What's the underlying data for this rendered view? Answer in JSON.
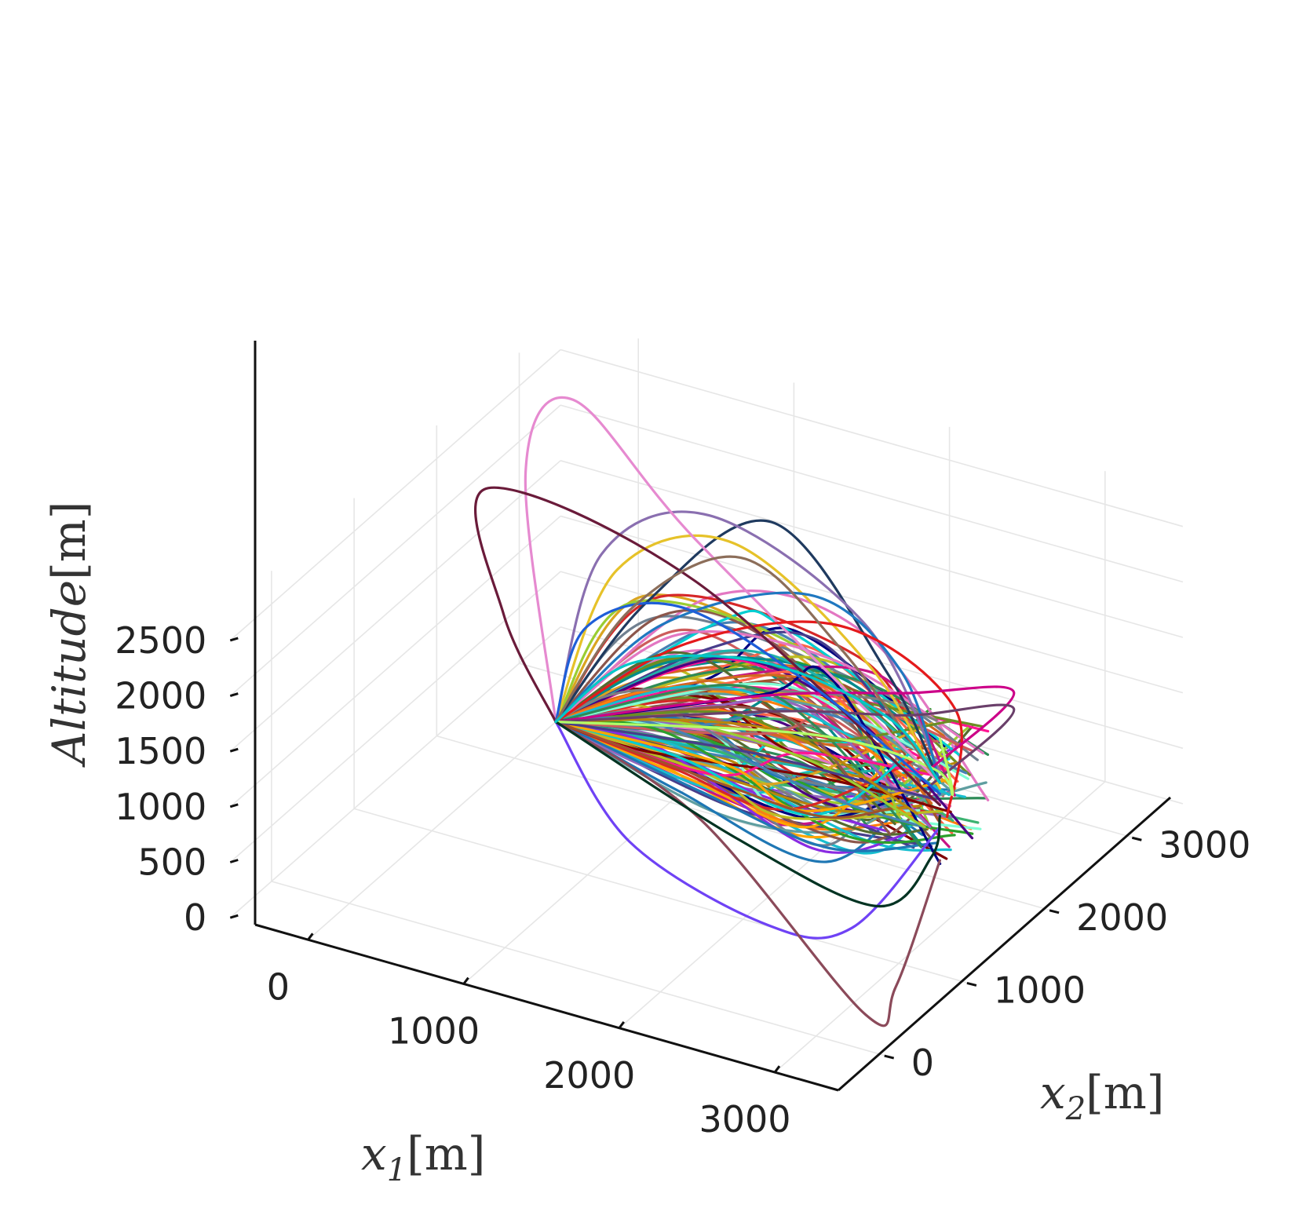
{
  "chart_data": {
    "type": "line",
    "projection": "3d",
    "title": "",
    "xlabel": "x_1[m]",
    "ylabel": "x_2[m]",
    "zlabel": "Altitude[m]",
    "axis_labels": {
      "x1": {
        "sym": "x",
        "sub": "1",
        "unit": "[m]"
      },
      "x2": {
        "sym": "x",
        "sub": "2",
        "unit": "[m]"
      },
      "z": {
        "text": "Altitude",
        "unit": "[m]"
      }
    },
    "xlim": [
      -500,
      3500
    ],
    "ylim": [
      -500,
      3500
    ],
    "zlim": [
      0,
      2800
    ],
    "x_ticks": [
      "0",
      "1000",
      "2000",
      "3000"
    ],
    "y_ticks": [
      "0",
      "1000",
      "2000",
      "3000"
    ],
    "z_ticks": [
      "0",
      "500",
      "1000",
      "1500",
      "2000",
      "2500"
    ],
    "grid": true,
    "start_point": [
      0,
      2500,
      0
    ],
    "end_region": {
      "x": 3000,
      "y": 1500,
      "z_range": [
        800,
        1700
      ]
    },
    "series_note": "approximately 150 trajectories, one color each",
    "highlighted_series": [
      {
        "color": "#1f3a5f",
        "points": [
          [
            0,
            2500,
            0
          ],
          [
            700,
            2300,
            1500
          ],
          [
            1600,
            2100,
            2700
          ],
          [
            2500,
            1800,
            1900
          ],
          [
            3000,
            1500,
            1300
          ]
        ]
      },
      {
        "color": "#e6c229",
        "points": [
          [
            0,
            2500,
            0
          ],
          [
            500,
            2300,
            1700
          ],
          [
            1400,
            2000,
            2500
          ],
          [
            2400,
            1800,
            1900
          ],
          [
            3000,
            1500,
            1250
          ]
        ]
      },
      {
        "color": "#8a6fb0",
        "points": [
          [
            0,
            2500,
            0
          ],
          [
            400,
            2300,
            1800
          ],
          [
            1200,
            2100,
            2600
          ],
          [
            2300,
            1900,
            2200
          ],
          [
            3000,
            1500,
            1400
          ]
        ]
      },
      {
        "color": "#e68ad0",
        "points": [
          [
            0,
            2500,
            0
          ],
          [
            -300,
            2700,
            2000
          ],
          [
            -100,
            2900,
            2600
          ],
          [
            900,
            2500,
            2000
          ],
          [
            3000,
            1500,
            1300
          ]
        ]
      },
      {
        "color": "#1f78c0",
        "points": [
          [
            0,
            2500,
            0
          ],
          [
            900,
            2100,
            1500
          ],
          [
            2000,
            1800,
            2400
          ],
          [
            2800,
            1400,
            2300
          ],
          [
            3000,
            1500,
            1300
          ]
        ]
      },
      {
        "color": "#e41a1c",
        "points": [
          [
            0,
            2500,
            0
          ],
          [
            1000,
            2200,
            1300
          ],
          [
            2200,
            1800,
            2200
          ],
          [
            3100,
            1500,
            2000
          ],
          [
            3100,
            1400,
            1100
          ]
        ]
      },
      {
        "color": "#cc0088",
        "points": [
          [
            0,
            2500,
            0
          ],
          [
            1600,
            2000,
            1200
          ],
          [
            2900,
            1300,
            2200
          ],
          [
            3900,
            700,
            3000
          ],
          [
            3000,
            1400,
            1500
          ]
        ]
      },
      {
        "color": "#6a3f6a",
        "points": [
          [
            0,
            2500,
            0
          ],
          [
            1700,
            2000,
            1100
          ],
          [
            2900,
            1300,
            2000
          ],
          [
            3900,
            700,
            2850
          ],
          [
            3000,
            1400,
            1350
          ]
        ]
      },
      {
        "color": "#6a1b3a",
        "points": [
          [
            0,
            2500,
            0
          ],
          [
            -600,
            3000,
            400
          ],
          [
            -700,
            3000,
            1500
          ],
          [
            1000,
            2300,
            1800
          ],
          [
            3000,
            1500,
            1100
          ]
        ]
      },
      {
        "color": "#1e5ed8",
        "points": [
          [
            0,
            2500,
            0
          ],
          [
            300,
            2300,
            1100
          ],
          [
            1000,
            2100,
            1700
          ],
          [
            2000,
            1800,
            1600
          ],
          [
            3000,
            1500,
            1200
          ]
        ]
      },
      {
        "color": "#6f42f5",
        "points": [
          [
            0,
            2500,
            0
          ],
          [
            900,
            1700,
            -200
          ],
          [
            2000,
            1300,
            -250
          ],
          [
            2700,
            1000,
            200
          ],
          [
            3000,
            1500,
            900
          ]
        ]
      },
      {
        "color": "#8b4a5a",
        "points": [
          [
            0,
            2500,
            0
          ],
          [
            1200,
            2000,
            -80
          ],
          [
            3000,
            600,
            -200
          ],
          [
            3300,
            400,
            300
          ],
          [
            3000,
            1500,
            600
          ]
        ]
      },
      {
        "color": "#b3ff66",
        "points": [
          [
            0,
            2500,
            0
          ],
          [
            1800,
            2200,
            800
          ],
          [
            3000,
            1400,
            1500
          ],
          [
            3400,
            900,
            1750
          ],
          [
            3000,
            1500,
            1700
          ]
        ]
      },
      {
        "color": "#8c6e5a",
        "points": [
          [
            0,
            2500,
            0
          ],
          [
            600,
            2300,
            1400
          ],
          [
            1400,
            2100,
            2300
          ],
          [
            2200,
            1800,
            2000
          ],
          [
            3000,
            1500,
            1300
          ]
        ]
      },
      {
        "color": "#003322",
        "points": [
          [
            0,
            2500,
            0
          ],
          [
            1600,
            1700,
            100
          ],
          [
            2700,
            1300,
            200
          ],
          [
            3000,
            1400,
            700
          ],
          [
            3000,
            1500,
            1000
          ]
        ]
      },
      {
        "color": "#00c8c8",
        "points": [
          [
            0,
            2500,
            0
          ],
          [
            600,
            2300,
            900
          ],
          [
            1600,
            2000,
            1500
          ],
          [
            2500,
            1800,
            1500
          ],
          [
            3000,
            1500,
            1300
          ]
        ]
      }
    ]
  }
}
